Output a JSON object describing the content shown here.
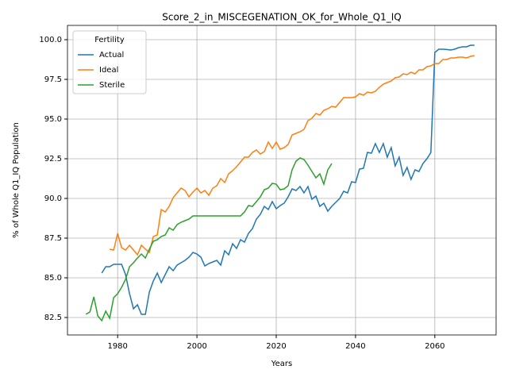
{
  "chart_data": {
    "type": "line",
    "title": "Score_2_in_MISCEGENATION_OK_for_Whole_Q1_IQ",
    "xlabel": "Years",
    "ylabel": "% of Whole Q1_IQ Population",
    "legend_title": "Fertility",
    "legend_loc": "upper left",
    "grid": true,
    "xlim": [
      1967.35,
      2075.45
    ],
    "ylim": [
      81.4,
      100.9
    ],
    "xticks": [
      1980,
      2000,
      2020,
      2040,
      2060
    ],
    "yticks": [
      82.5,
      {
        "value": 85,
        "label": "85.0"
      },
      87.5,
      {
        "value": 90,
        "label": "90.0"
      },
      92.5,
      {
        "value": 95,
        "label": "95.0"
      },
      97.5,
      {
        "value": 100,
        "label": "100.0"
      }
    ],
    "x": [
      1972,
      1973,
      1974,
      1975,
      1976,
      1977,
      1978,
      1979,
      1980,
      1981,
      1982,
      1983,
      1984,
      1985,
      1986,
      1987,
      1988,
      1989,
      1990,
      1991,
      1992,
      1993,
      1994,
      1995,
      1996,
      1997,
      1998,
      1999,
      2000,
      2001,
      2002,
      2003,
      2004,
      2005,
      2006,
      2007,
      2008,
      2009,
      2010,
      2011,
      2012,
      2013,
      2014,
      2015,
      2016,
      2017,
      2018,
      2019,
      2020,
      2021,
      2022,
      2023,
      2024,
      2025,
      2026,
      2027,
      2028,
      2029,
      2030,
      2031,
      2032,
      2033,
      2034,
      2035,
      2036,
      2037,
      2038,
      2039,
      2040,
      2041,
      2042,
      2043,
      2044,
      2045,
      2046,
      2047,
      2048,
      2049,
      2050,
      2051,
      2052,
      2053,
      2054,
      2055,
      2056,
      2057,
      2058,
      2059,
      2060,
      2061,
      2062,
      2063,
      2064,
      2065,
      2066,
      2067,
      2068,
      2069,
      2070
    ],
    "series": [
      {
        "name": "Actual",
        "color": "#1f77b4",
        "values": [
          null,
          null,
          null,
          null,
          85.3,
          85.7,
          85.7,
          85.85,
          85.85,
          85.85,
          85.2,
          84.0,
          83.05,
          83.3,
          82.7,
          82.7,
          84.1,
          84.8,
          85.3,
          84.7,
          85.2,
          85.7,
          85.45,
          85.8,
          85.95,
          86.1,
          86.3,
          86.6,
          86.5,
          86.3,
          85.75,
          85.9,
          86.0,
          86.1,
          85.8,
          86.7,
          86.45,
          87.15,
          86.85,
          87.4,
          87.25,
          87.8,
          88.1,
          88.7,
          89.0,
          89.5,
          89.3,
          89.8,
          89.35,
          89.55,
          89.7,
          90.1,
          90.6,
          90.5,
          90.75,
          90.35,
          90.75,
          89.95,
          90.15,
          89.5,
          89.7,
          89.2,
          89.5,
          89.75,
          90.0,
          90.45,
          90.35,
          91.05,
          91.0,
          91.85,
          91.9,
          92.9,
          92.85,
          93.45,
          92.9,
          93.45,
          92.6,
          93.2,
          92.05,
          92.6,
          91.45,
          91.95,
          91.2,
          91.8,
          91.7,
          92.2,
          92.5,
          92.9,
          99.2,
          99.4,
          99.4,
          99.38,
          99.35,
          99.4,
          99.5,
          99.55,
          99.55,
          99.65,
          99.65
        ]
      },
      {
        "name": "Ideal",
        "color": "#ff7f0e",
        "values": [
          null,
          null,
          null,
          null,
          null,
          null,
          86.8,
          86.75,
          87.8,
          86.9,
          86.75,
          87.05,
          86.75,
          86.45,
          87.05,
          86.8,
          86.6,
          87.6,
          87.7,
          89.3,
          89.15,
          89.5,
          90.05,
          90.35,
          90.65,
          90.5,
          90.1,
          90.4,
          90.65,
          90.35,
          90.5,
          90.2,
          90.65,
          90.8,
          91.25,
          91.0,
          91.55,
          91.75,
          92.0,
          92.3,
          92.6,
          92.6,
          92.9,
          93.05,
          92.8,
          92.95,
          93.55,
          93.15,
          93.55,
          93.1,
          93.2,
          93.4,
          94.0,
          94.1,
          94.2,
          94.35,
          94.9,
          95.05,
          95.35,
          95.25,
          95.55,
          95.65,
          95.8,
          95.75,
          96.05,
          96.35,
          96.35,
          96.35,
          96.4,
          96.6,
          96.5,
          96.7,
          96.65,
          96.75,
          97.0,
          97.2,
          97.3,
          97.4,
          97.6,
          97.65,
          97.85,
          97.8,
          97.95,
          97.85,
          98.1,
          98.1,
          98.3,
          98.35,
          98.5,
          98.5,
          98.75,
          98.75,
          98.85,
          98.85,
          98.9,
          98.9,
          98.85,
          98.95,
          99.0
        ]
      },
      {
        "name": "Sterile",
        "color": "#2ca02c",
        "values": [
          82.7,
          82.85,
          83.8,
          82.6,
          82.3,
          82.9,
          82.45,
          83.75,
          84.0,
          84.4,
          84.9,
          85.7,
          85.95,
          86.25,
          86.5,
          86.25,
          86.8,
          87.3,
          87.4,
          87.6,
          87.7,
          88.15,
          88.0,
          88.35,
          88.5,
          88.6,
          88.7,
          88.9,
          88.9,
          88.9,
          88.9,
          88.9,
          88.9,
          88.9,
          88.9,
          88.9,
          88.9,
          88.9,
          88.9,
          88.9,
          89.15,
          89.55,
          89.5,
          89.8,
          90.1,
          90.55,
          90.65,
          90.95,
          90.9,
          90.55,
          90.6,
          90.8,
          91.8,
          92.35,
          92.55,
          92.45,
          92.1,
          91.7,
          91.3,
          91.55,
          90.9,
          91.8,
          92.2,
          null,
          null,
          null,
          null,
          null,
          null,
          null,
          null,
          null,
          null,
          null,
          null,
          null,
          null,
          null,
          null,
          null,
          null,
          null,
          null,
          null,
          null,
          null,
          null,
          null,
          null,
          null,
          null,
          null,
          null,
          null,
          null,
          null,
          null,
          null,
          null
        ]
      }
    ]
  }
}
